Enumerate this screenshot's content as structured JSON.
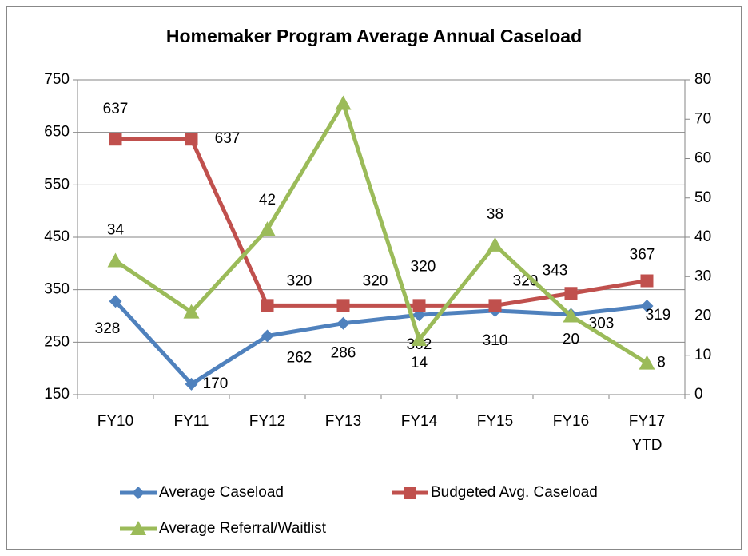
{
  "chart_data": {
    "type": "line",
    "title": "Homemaker Program Average Annual Caseload",
    "categories": [
      "FY10",
      "FY11",
      "FY12",
      "FY13",
      "FY14",
      "FY15",
      "FY16",
      "FY17 YTD"
    ],
    "series": [
      {
        "name": "Average Caseload",
        "color": "#4f81bd",
        "marker": "diamond",
        "values": [
          328,
          170,
          262,
          286,
          302,
          310,
          303,
          319
        ]
      },
      {
        "name": "Budgeted Avg. Caseload",
        "color": "#c0504d",
        "marker": "square",
        "values": [
          637,
          637,
          320,
          320,
          320,
          320,
          343,
          367
        ]
      },
      {
        "name": "Average Referral/Waitlist",
        "color": "#9bbb59",
        "marker": "triangle",
        "axis": "y2",
        "values": [
          34,
          21,
          42,
          74,
          14,
          38,
          20,
          8
        ],
        "value_labels": [
          "34",
          null,
          "42",
          null,
          "14",
          "38",
          "20",
          "8"
        ]
      }
    ],
    "ylim": [
      150,
      750
    ],
    "yticks": [
      150,
      250,
      350,
      450,
      550,
      650,
      750
    ],
    "y2lim": [
      0,
      80
    ],
    "y2ticks": [
      0,
      10,
      20,
      30,
      40,
      50,
      60,
      70,
      80
    ],
    "grid": true,
    "legend": "bottom"
  }
}
